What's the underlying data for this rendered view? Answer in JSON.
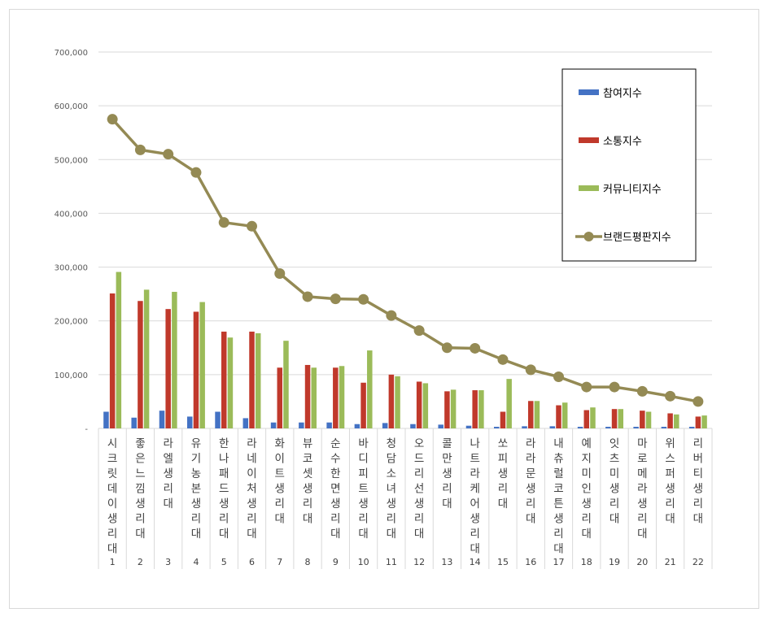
{
  "chart_data": {
    "type": "bar",
    "categories": [
      "시크릿데이 생리대",
      "좋은느낌 생리대",
      "라엘 생리대",
      "유기농본 생리대",
      "한나패드 생리대",
      "라네이처 생리대",
      "화이트 생리대",
      "뷰코셋 생리대",
      "순수한면 생리대",
      "바디피트 생리대",
      "청담소녀 생리대",
      "오드리선 생리대",
      "콜만 생리대",
      "나트라케어 생리대",
      "쏘피 생리대",
      "라라문 생리대",
      "내츄럴코튼 생리대",
      "예지미인 생리대",
      "잇츠미 생리대",
      "마로메라 생리대",
      "위스퍼 생리대",
      "리버티 생리대"
    ],
    "ranks": [
      "1",
      "2",
      "3",
      "4",
      "5",
      "6",
      "7",
      "8",
      "9",
      "10",
      "11",
      "12",
      "13",
      "14",
      "15",
      "16",
      "17",
      "18",
      "19",
      "20",
      "21",
      "22"
    ],
    "yticks": [
      "-",
      "100,000",
      "200,000",
      "300,000",
      "400,000",
      "500,000",
      "600,000",
      "700,000"
    ],
    "ylim": [
      0,
      700000
    ],
    "grid": true,
    "legend_position": "top-right",
    "series": [
      {
        "name": "참여지수",
        "kind": "bar",
        "color": "#4472c4",
        "values": [
          31000,
          20000,
          33000,
          22000,
          31000,
          19000,
          11000,
          11000,
          11000,
          8000,
          10000,
          8000,
          7000,
          5000,
          3000,
          4000,
          4000,
          3000,
          3000,
          3000,
          3000,
          3000
        ]
      },
      {
        "name": "소통지수",
        "kind": "bar",
        "color": "#c0392b",
        "values": [
          251000,
          237000,
          222000,
          217000,
          180000,
          180000,
          113000,
          118000,
          113000,
          85000,
          100000,
          87000,
          69000,
          71000,
          31000,
          51000,
          43000,
          34000,
          36000,
          33000,
          28000,
          22000
        ]
      },
      {
        "name": "커뮤니티지수",
        "kind": "bar",
        "color": "#9bbb59",
        "values": [
          291000,
          258000,
          254000,
          235000,
          169000,
          177000,
          163000,
          113000,
          116000,
          145000,
          97000,
          84000,
          72000,
          71000,
          92000,
          51000,
          48000,
          39000,
          36000,
          31000,
          26000,
          24000
        ]
      },
      {
        "name": "브랜드평판지수",
        "kind": "line",
        "color": "#948a54",
        "values": [
          575000,
          518000,
          510000,
          476000,
          383000,
          376000,
          288000,
          245000,
          241000,
          240000,
          210000,
          182000,
          150000,
          149000,
          128000,
          109000,
          96000,
          77000,
          77000,
          69000,
          60000,
          50000
        ]
      }
    ]
  }
}
